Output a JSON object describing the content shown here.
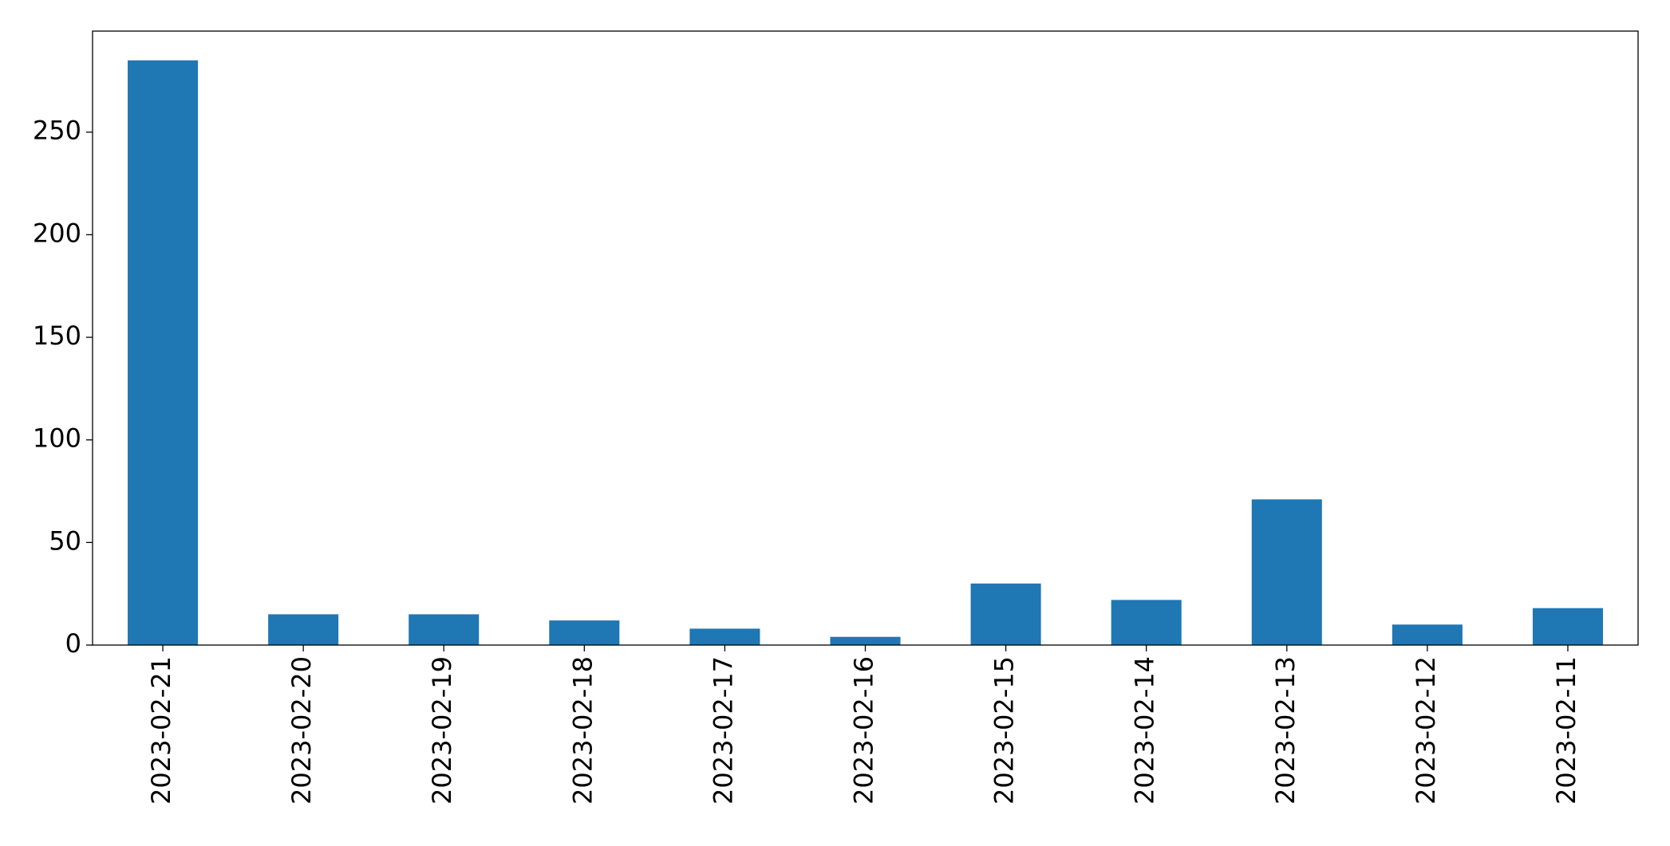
{
  "chart_data": {
    "type": "bar",
    "categories": [
      "2023-02-21",
      "2023-02-20",
      "2023-02-19",
      "2023-02-18",
      "2023-02-17",
      "2023-02-16",
      "2023-02-15",
      "2023-02-14",
      "2023-02-13",
      "2023-02-12",
      "2023-02-11"
    ],
    "values": [
      285,
      15,
      15,
      12,
      8,
      4,
      30,
      22,
      71,
      10,
      18
    ],
    "color": "#1f77b4",
    "ylim": [
      0,
      299.25
    ],
    "yticks": [
      0,
      50,
      100,
      150,
      200,
      250
    ],
    "grid": false
  }
}
